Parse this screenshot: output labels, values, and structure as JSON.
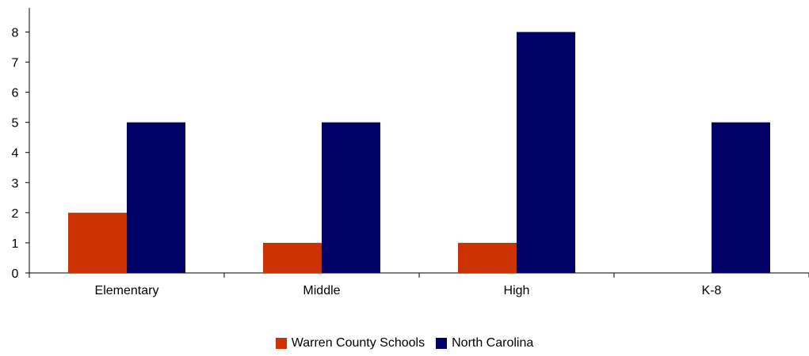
{
  "chart_data": {
    "type": "bar",
    "categories": [
      "Elementary",
      "Middle",
      "High",
      "K-8"
    ],
    "series": [
      {
        "name": "Warren County Schools",
        "color": "#cc3300",
        "values": [
          2,
          1,
          1,
          0
        ]
      },
      {
        "name": "North Carolina",
        "color": "#000066",
        "values": [
          5,
          5,
          8,
          5
        ]
      }
    ],
    "title": "",
    "xlabel": "",
    "ylabel": "",
    "ylim": [
      0,
      8.8
    ],
    "yticks": [
      0,
      1,
      2,
      3,
      4,
      5,
      6,
      7,
      8
    ],
    "grid": false,
    "legend": "bottom"
  }
}
